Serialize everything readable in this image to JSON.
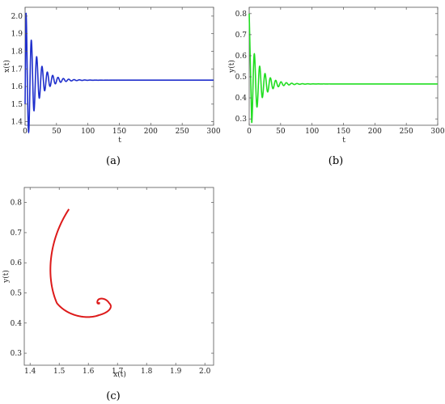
{
  "chart_data": [
    {
      "type": "line",
      "caption": "(a)",
      "xlabel": "t",
      "ylabel": "x(t)",
      "xlim": [
        0,
        300
      ],
      "ylim": [
        1.38,
        2.05
      ],
      "xticks": [
        0,
        50,
        100,
        150,
        200,
        250,
        300
      ],
      "yticks": [
        1.4,
        1.5,
        1.6,
        1.7,
        1.8,
        1.9,
        2.0
      ],
      "grid": false,
      "color": "#1f2fcc",
      "series": [
        {
          "equilibrium": 1.636,
          "start": 1.5,
          "first_peak": 2.02,
          "decay_time": 16,
          "period": 8.5,
          "t_range": [
            0,
            300
          ]
        }
      ]
    },
    {
      "type": "line",
      "caption": "(b)",
      "xlabel": "t",
      "ylabel": "y(t)",
      "xlim": [
        0,
        300
      ],
      "ylim": [
        0.27,
        0.83
      ],
      "xticks": [
        0,
        50,
        100,
        150,
        200,
        250,
        300
      ],
      "yticks": [
        0.3,
        0.4,
        0.5,
        0.6,
        0.7,
        0.8
      ],
      "grid": false,
      "color": "#22dd22",
      "series": [
        {
          "equilibrium": 0.466,
          "start": 0.8,
          "first_trough": 0.28,
          "decay_time": 16,
          "period": 8.5,
          "t_range": [
            0,
            300
          ]
        }
      ]
    },
    {
      "type": "line",
      "caption": "(c)",
      "xlabel": "x(t)",
      "ylabel": "y(t)",
      "xlim": [
        1.38,
        2.03
      ],
      "ylim": [
        0.26,
        0.85
      ],
      "xticks": [
        1.4,
        1.5,
        1.6,
        1.7,
        1.8,
        1.9,
        2.0
      ],
      "yticks": [
        0.3,
        0.4,
        0.5,
        0.6,
        0.7,
        0.8
      ],
      "grid": false,
      "color": "#dd1a1a",
      "series": [
        {
          "start_point": [
            1.5,
            0.8
          ],
          "equilibrium_point": [
            1.636,
            0.466
          ],
          "x_extent": [
            1.41,
            2.02
          ],
          "y_extent": [
            0.28,
            0.84
          ]
        }
      ]
    }
  ]
}
